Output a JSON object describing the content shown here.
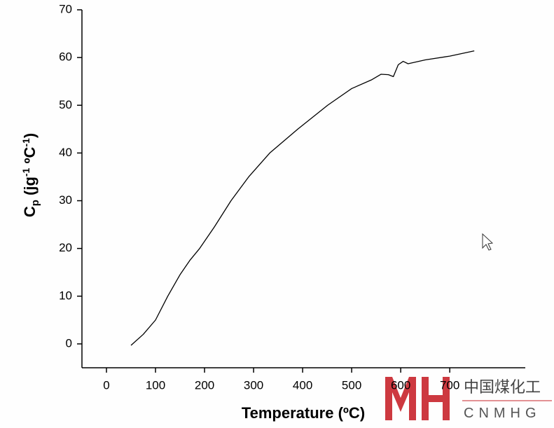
{
  "chart_data": {
    "type": "line",
    "x_label": "Temperature (ºC)",
    "y_label": [
      "C",
      "p",
      " (jg",
      "-1",
      " ºC",
      "-1",
      ")"
    ],
    "x": [
      50,
      75,
      100,
      125,
      150,
      170,
      190,
      220,
      254,
      290,
      333,
      390,
      451,
      500,
      540,
      560,
      575,
      585,
      595,
      605,
      615,
      650,
      700,
      750
    ],
    "series": [
      {
        "color": "#000000",
        "values": [
          -0.3,
          2,
          5,
          10,
          14.5,
          17.5,
          20,
          24.5,
          30,
          35,
          40,
          45,
          50,
          53.5,
          55.3,
          56.5,
          56.4,
          56.0,
          58.5,
          59.2,
          58.7,
          59.5,
          60.3,
          61.4
        ]
      }
    ],
    "xlim": [
      -50,
      854
    ],
    "ylim": [
      -5,
      70
    ],
    "xticks": [
      0,
      100,
      200,
      300,
      400,
      500,
      600,
      700
    ],
    "yticks": [
      0,
      10,
      20,
      30,
      40,
      50,
      60,
      70
    ]
  },
  "watermark": {
    "cn": "中国煤化工",
    "en": "CNMHG"
  }
}
